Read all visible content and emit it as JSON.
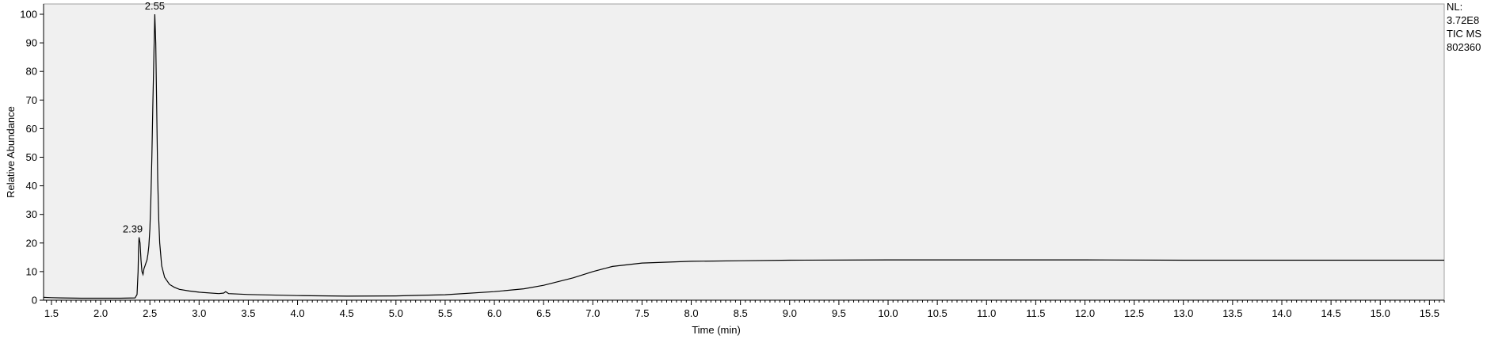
{
  "chart_data": {
    "type": "line",
    "xlabel": "Time (min)",
    "ylabel": "Relative Abundance",
    "xlim": [
      1.42,
      15.65
    ],
    "ylim": [
      0,
      100
    ],
    "x_ticks": [
      1.5,
      2.0,
      2.5,
      3.0,
      3.5,
      4.0,
      4.5,
      5.0,
      5.5,
      6.0,
      6.5,
      7.0,
      7.5,
      8.0,
      8.5,
      9.0,
      9.5,
      10.0,
      10.5,
      11.0,
      11.5,
      12.0,
      12.5,
      13.0,
      13.5,
      14.0,
      14.5,
      15.0,
      15.5
    ],
    "x_tick_labels": [
      "1.5",
      "2.0",
      "2.5",
      "3.0",
      "3.5",
      "4.0",
      "4.5",
      "5.0",
      "5.5",
      "6.0",
      "6.5",
      "7.0",
      "7.5",
      "8.0",
      "8.5",
      "9.0",
      "9.5",
      "10.0",
      "10.5",
      "11.0",
      "11.5",
      "12.0",
      "12.5",
      "13.0",
      "13.5",
      "14.0",
      "14.5",
      "15.0",
      "15.5"
    ],
    "y_ticks": [
      0,
      10,
      20,
      30,
      40,
      50,
      60,
      70,
      80,
      90,
      100
    ],
    "y_tick_labels": [
      "0",
      "10",
      "20",
      "30",
      "40",
      "50",
      "60",
      "70",
      "80",
      "90",
      "100"
    ],
    "peak_labels": [
      {
        "text": "2.55",
        "x": 2.55,
        "y": 100
      },
      {
        "text": "2.39",
        "x": 2.39,
        "y": 22
      }
    ],
    "info_lines": [
      "NL:",
      "3.72E8",
      "TIC  MS",
      "802360"
    ],
    "grid": false,
    "line_color": "#000000",
    "plot_background": "#f0f0f0",
    "series": [
      {
        "x": [
          1.42,
          1.5,
          1.6,
          1.8,
          2.0,
          2.2,
          2.35,
          2.37,
          2.38,
          2.385,
          2.39,
          2.4,
          2.41,
          2.42,
          2.43,
          2.44,
          2.45,
          2.46,
          2.47,
          2.48,
          2.49,
          2.5,
          2.51,
          2.52,
          2.53,
          2.54,
          2.55,
          2.56,
          2.57,
          2.58,
          2.59,
          2.6,
          2.62,
          2.65,
          2.7,
          2.75,
          2.8,
          2.9,
          3.0,
          3.2,
          3.25,
          3.27,
          3.3,
          3.5,
          4.0,
          4.5,
          5.0,
          5.5,
          6.0,
          6.3,
          6.5,
          6.8,
          7.0,
          7.2,
          7.5,
          8.0,
          8.5,
          9.0,
          10.0,
          11.0,
          12.0,
          13.0,
          14.0,
          15.0,
          15.65
        ],
        "y": [
          1.0,
          0.9,
          0.8,
          0.7,
          0.7,
          0.7,
          0.8,
          2.0,
          10.0,
          18.0,
          22.0,
          20.0,
          14.0,
          10.0,
          9.0,
          11.0,
          12.0,
          13.0,
          14.0,
          16.0,
          19.0,
          25.0,
          35.0,
          50.0,
          68.0,
          85.0,
          100.0,
          90.0,
          65.0,
          42.0,
          28.0,
          20.0,
          12.0,
          8.0,
          5.5,
          4.5,
          3.8,
          3.2,
          2.8,
          2.3,
          2.5,
          3.0,
          2.3,
          2.0,
          1.6,
          1.4,
          1.5,
          1.9,
          3.0,
          4.0,
          5.2,
          7.8,
          10.0,
          11.8,
          13.0,
          13.6,
          13.8,
          14.0,
          14.1,
          14.1,
          14.1,
          14.0,
          14.0,
          14.0,
          14.0
        ]
      }
    ]
  }
}
